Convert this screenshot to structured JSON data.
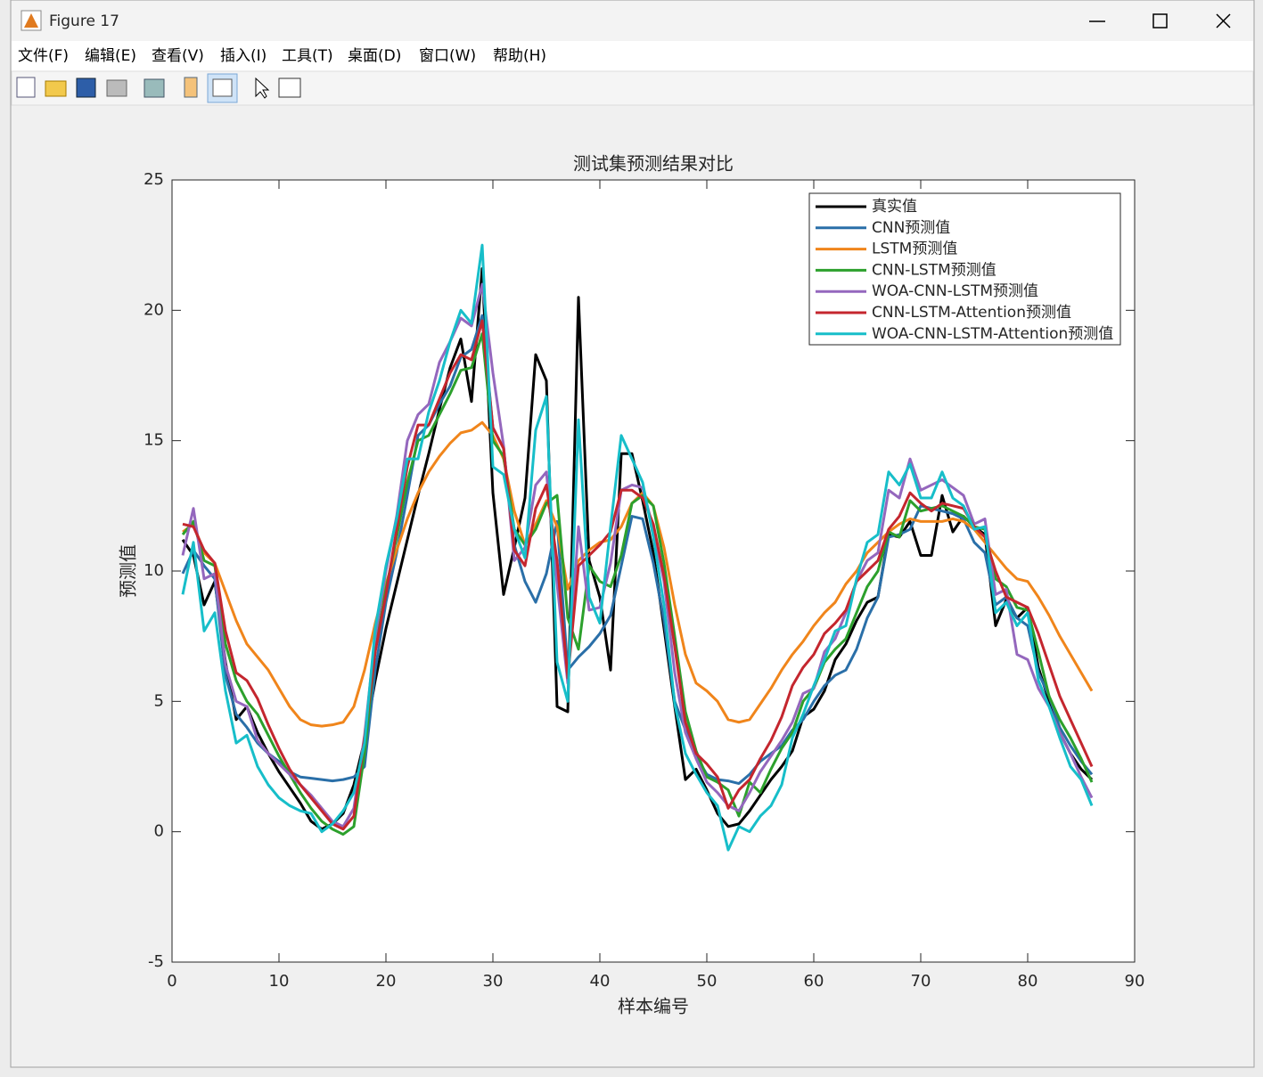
{
  "window": {
    "title": "Figure 17",
    "menu": [
      "文件(F)",
      "编辑(E)",
      "查看(V)",
      "插入(I)",
      "工具(T)",
      "桌面(D)",
      "窗口(W)",
      "帮助(H)"
    ]
  },
  "chart_data": {
    "type": "line",
    "title": "测试集预测结果对比",
    "xlabel": "样本编号",
    "ylabel": "预测值",
    "xlim": [
      0,
      90
    ],
    "xticks": [
      0,
      10,
      20,
      30,
      40,
      50,
      60,
      70,
      80,
      90
    ],
    "ylim": [
      -5,
      25
    ],
    "yticks": [
      -5,
      0,
      5,
      10,
      15,
      20,
      25
    ],
    "legend": "upper right",
    "box": true,
    "x": [
      1,
      2,
      3,
      4,
      5,
      6,
      7,
      8,
      9,
      10,
      11,
      12,
      13,
      14,
      15,
      16,
      17,
      18,
      19,
      20,
      21,
      22,
      23,
      24,
      25,
      26,
      27,
      28,
      29,
      30,
      31,
      32,
      33,
      34,
      35,
      36,
      37,
      38,
      39,
      40,
      41,
      42,
      43,
      44,
      45,
      46,
      47,
      48,
      49,
      50,
      51,
      52,
      53,
      54,
      55,
      56,
      57,
      58,
      59,
      60,
      61,
      62,
      63,
      64,
      65,
      66,
      67,
      68,
      69,
      70,
      71,
      72,
      73,
      74,
      75,
      76,
      77,
      78,
      79,
      80,
      81,
      82,
      83,
      84,
      85,
      86
    ],
    "series": [
      {
        "name": "真实值",
        "color": "#000000",
        "values": [
          11.2,
          10.6,
          8.7,
          9.6,
          6.5,
          4.3,
          4.8,
          3.8,
          3.0,
          2.3,
          1.7,
          1.1,
          0.4,
          0.1,
          0.3,
          0.7,
          1.8,
          3.5,
          5.8,
          7.8,
          9.5,
          11.2,
          12.9,
          14.5,
          16.2,
          17.8,
          18.9,
          16.5,
          21.6,
          13.0,
          9.1,
          10.9,
          12.8,
          18.3,
          17.3,
          4.8,
          4.6,
          20.5,
          10.4,
          9.0,
          6.2,
          14.5,
          14.5,
          12.7,
          10.7,
          7.8,
          4.8,
          2.0,
          2.4,
          1.6,
          0.7,
          0.2,
          0.3,
          0.8,
          1.4,
          2.0,
          2.5,
          3.1,
          4.4,
          4.7,
          5.4,
          6.6,
          7.2,
          8.1,
          8.8,
          9.0,
          11.4,
          11.3,
          11.9,
          10.6,
          10.6,
          12.9,
          11.5,
          12.1,
          11.7,
          11.4,
          7.9,
          8.9,
          8.2,
          8.6,
          6.3,
          5.0,
          3.8,
          3.0,
          2.4,
          2.0
        ]
      },
      {
        "name": "CNN预测值",
        "color": "#2a6fa8",
        "values": [
          9.9,
          10.8,
          10.2,
          9.7,
          6.0,
          4.5,
          4.0,
          3.4,
          3.0,
          2.7,
          2.3,
          2.1,
          2.05,
          2.0,
          1.95,
          2.0,
          2.1,
          2.5,
          6.2,
          8.8,
          10.7,
          12.9,
          15.2,
          15.6,
          16.4,
          17.1,
          18.2,
          18.5,
          19.8,
          15.5,
          14.7,
          11.0,
          9.6,
          8.8,
          9.9,
          11.9,
          6.2,
          6.7,
          7.1,
          7.6,
          8.3,
          10.2,
          12.1,
          12.0,
          10.3,
          8.1,
          5.0,
          3.9,
          2.9,
          2.2,
          2.0,
          1.95,
          1.85,
          2.2,
          2.7,
          3.0,
          3.3,
          3.9,
          4.3,
          5.0,
          5.6,
          6.0,
          6.2,
          7.0,
          8.2,
          9.0,
          11.3,
          11.4,
          11.6,
          12.5,
          12.4,
          12.3,
          12.2,
          12.0,
          11.1,
          10.7,
          8.7,
          9.0,
          8.2,
          7.9,
          6.1,
          5.2,
          4.0,
          3.3,
          2.7,
          2.2
        ]
      },
      {
        "name": "LSTM预测值",
        "color": "#f0851b",
        "values": [
          11.5,
          11.8,
          10.7,
          10.3,
          9.2,
          8.1,
          7.2,
          6.7,
          6.2,
          5.5,
          4.8,
          4.3,
          4.1,
          4.05,
          4.1,
          4.2,
          4.8,
          6.2,
          8.0,
          9.5,
          10.8,
          12.0,
          13.0,
          13.8,
          14.4,
          14.9,
          15.3,
          15.4,
          15.7,
          15.2,
          14.3,
          12.3,
          11.0,
          11.8,
          12.7,
          11.7,
          9.3,
          10.4,
          10.8,
          11.1,
          11.2,
          11.7,
          12.6,
          13.0,
          12.5,
          10.9,
          8.7,
          6.8,
          5.7,
          5.4,
          5.0,
          4.3,
          4.2,
          4.3,
          4.9,
          5.5,
          6.2,
          6.8,
          7.3,
          7.9,
          8.4,
          8.8,
          9.5,
          10.0,
          10.7,
          11.1,
          11.5,
          11.8,
          12.0,
          11.9,
          11.9,
          11.9,
          12.0,
          11.9,
          11.6,
          11.1,
          10.6,
          10.1,
          9.7,
          9.6,
          9.0,
          8.3,
          7.5,
          6.8,
          6.1,
          5.4
        ]
      },
      {
        "name": "CNN-LSTM预测值",
        "color": "#2ca02c",
        "values": [
          11.4,
          11.9,
          10.4,
          10.2,
          7.2,
          5.8,
          5.0,
          4.5,
          3.7,
          2.9,
          2.2,
          1.5,
          0.9,
          0.4,
          0.1,
          -0.1,
          0.2,
          3.0,
          7.0,
          9.3,
          11.3,
          13.4,
          15.0,
          15.2,
          16.0,
          16.8,
          17.7,
          17.8,
          19.1,
          15.0,
          14.4,
          11.6,
          11.0,
          11.6,
          12.6,
          12.9,
          8.2,
          7.0,
          10.2,
          9.6,
          9.4,
          10.6,
          12.6,
          12.9,
          12.5,
          10.3,
          7.5,
          4.6,
          3.1,
          2.1,
          1.9,
          1.6,
          0.6,
          1.9,
          1.5,
          2.4,
          3.2,
          3.8,
          5.0,
          5.5,
          6.5,
          7.0,
          7.4,
          8.4,
          9.4,
          10.0,
          11.5,
          11.3,
          12.7,
          12.3,
          12.4,
          12.5,
          12.3,
          12.1,
          11.7,
          11.6,
          9.7,
          9.4,
          8.6,
          8.5,
          6.9,
          5.2,
          4.3,
          3.6,
          2.8,
          1.9
        ]
      },
      {
        "name": "WOA-CNN-LSTM预测值",
        "color": "#9467bd",
        "values": [
          10.6,
          12.4,
          9.7,
          9.9,
          6.4,
          5.0,
          4.8,
          3.5,
          3.0,
          2.6,
          2.2,
          1.8,
          1.4,
          0.9,
          0.4,
          0.2,
          0.9,
          3.7,
          7.5,
          10.0,
          12.1,
          15.0,
          16.0,
          16.4,
          18.0,
          18.8,
          19.7,
          19.4,
          21.0,
          17.6,
          14.8,
          10.4,
          10.9,
          13.3,
          13.8,
          9.5,
          5.7,
          11.7,
          8.5,
          8.6,
          10.3,
          13.1,
          13.3,
          13.2,
          11.6,
          9.6,
          6.1,
          3.8,
          2.8,
          1.9,
          1.5,
          1.0,
          0.8,
          1.5,
          2.3,
          2.9,
          3.5,
          4.2,
          5.3,
          5.5,
          6.9,
          7.4,
          8.4,
          9.6,
          10.4,
          10.7,
          13.1,
          12.8,
          14.3,
          13.1,
          13.3,
          13.5,
          13.2,
          12.9,
          11.8,
          12.0,
          9.1,
          9.3,
          6.8,
          6.6,
          5.5,
          4.8,
          3.8,
          3.0,
          2.1,
          1.3
        ]
      },
      {
        "name": "CNN-LSTM-Attention预测值",
        "color": "#c4262e",
        "values": [
          11.8,
          11.7,
          10.8,
          10.3,
          7.7,
          6.1,
          5.8,
          5.1,
          4.1,
          3.2,
          2.4,
          1.8,
          1.3,
          0.8,
          0.3,
          0.1,
          0.6,
          3.6,
          6.9,
          9.1,
          11.6,
          14.0,
          15.6,
          15.6,
          16.6,
          17.6,
          18.3,
          18.1,
          19.6,
          15.5,
          14.7,
          10.8,
          10.2,
          12.4,
          13.3,
          10.4,
          5.9,
          10.2,
          10.6,
          11.0,
          11.5,
          13.1,
          13.1,
          12.8,
          11.8,
          9.8,
          7.1,
          4.2,
          3.0,
          2.6,
          2.1,
          0.9,
          1.6,
          2.0,
          2.8,
          3.5,
          4.4,
          5.6,
          6.3,
          6.8,
          7.6,
          8.0,
          8.5,
          9.6,
          10.0,
          10.4,
          11.6,
          12.1,
          13.0,
          12.6,
          12.3,
          12.6,
          12.5,
          12.4,
          11.7,
          11.3,
          10.0,
          9.0,
          8.8,
          8.6,
          7.6,
          6.4,
          5.2,
          4.3,
          3.4,
          2.5
        ]
      },
      {
        "name": "WOA-CNN-LSTM-Attention预测值",
        "color": "#17bec9",
        "values": [
          9.1,
          11.1,
          7.7,
          8.4,
          5.4,
          3.4,
          3.7,
          2.5,
          1.8,
          1.3,
          1.0,
          0.8,
          0.7,
          0.0,
          0.3,
          0.8,
          1.5,
          3.4,
          7.8,
          10.2,
          12.0,
          14.3,
          14.3,
          16.1,
          17.3,
          18.8,
          20.0,
          19.5,
          22.5,
          14.0,
          13.7,
          11.6,
          10.5,
          15.4,
          16.7,
          6.5,
          5.0,
          15.8,
          9.0,
          8.0,
          11.7,
          15.2,
          14.3,
          13.4,
          11.3,
          8.7,
          4.9,
          3.0,
          2.2,
          1.5,
          1.0,
          -0.7,
          0.2,
          0.0,
          0.6,
          1.0,
          1.8,
          3.6,
          4.5,
          5.6,
          6.6,
          7.7,
          7.9,
          9.7,
          11.1,
          11.4,
          13.8,
          13.3,
          14.1,
          12.8,
          12.8,
          13.8,
          12.8,
          12.5,
          11.6,
          11.7,
          8.4,
          8.8,
          7.9,
          8.4,
          5.8,
          4.8,
          3.6,
          2.5,
          2.0,
          1.0
        ]
      }
    ]
  }
}
